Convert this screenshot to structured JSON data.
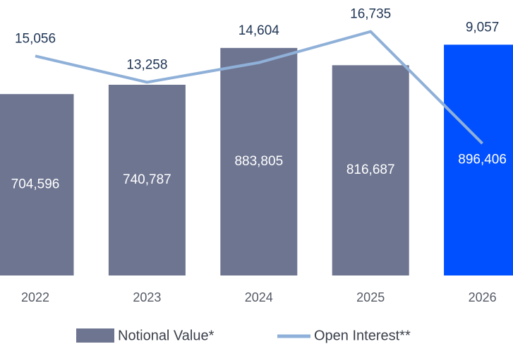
{
  "chart_data": {
    "type": "bar+line",
    "categories": [
      "2022",
      "2023",
      "2024",
      "2025",
      "2026"
    ],
    "series": [
      {
        "name": "Notional Value*",
        "type": "bar",
        "color": "#6e7591",
        "colors": [
          "#6e7591",
          "#6e7591",
          "#6e7591",
          "#6e7591",
          "#0050ff"
        ],
        "values": [
          704596,
          740787,
          883805,
          816687,
          896406
        ],
        "value_labels": [
          "704,596",
          "740,787",
          "883,805",
          "816,687",
          "896,406"
        ]
      },
      {
        "name": "Open Interest**",
        "type": "line",
        "axis": "y2",
        "color": "#8fb0d8",
        "values": [
          15056,
          13258,
          14604,
          16735,
          9057
        ],
        "value_labels": [
          "15,056",
          "13,258",
          "14,604",
          "16,735",
          "9,057"
        ]
      }
    ],
    "ylim": [
      0,
      1070000
    ],
    "y2lim": [
      0,
      18900
    ]
  }
}
